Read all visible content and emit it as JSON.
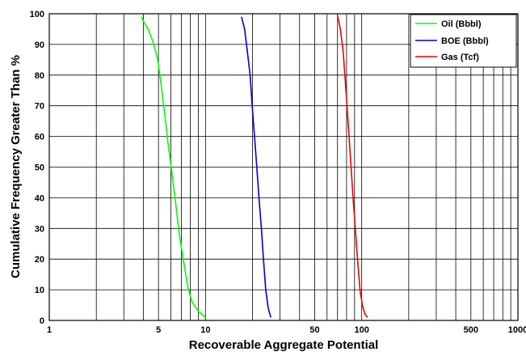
{
  "chart_data": {
    "type": "line",
    "xlabel": "Recoverable Aggregate Potential",
    "ylabel": "Cumulative Frequency Greater Than %",
    "xscale": "log",
    "xlim": [
      1,
      1000
    ],
    "ylim": [
      0,
      100
    ],
    "grid": true,
    "legend_position": "top-right",
    "x_ticks": [
      {
        "value": 1,
        "label": "1"
      },
      {
        "value": 5,
        "label": "5"
      },
      {
        "value": 10,
        "label": "10"
      },
      {
        "value": 50,
        "label": "50"
      },
      {
        "value": 100,
        "label": "100"
      },
      {
        "value": 500,
        "label": "500"
      },
      {
        "value": 1000,
        "label": "1000"
      }
    ],
    "y_ticks": [
      0,
      10,
      20,
      30,
      40,
      50,
      60,
      70,
      80,
      90,
      100
    ],
    "series": [
      {
        "name": "Oil (Bbbl)",
        "color": "#00ff00",
        "points": [
          [
            3.9,
            99
          ],
          [
            4.0,
            97.5
          ],
          [
            4.3,
            95
          ],
          [
            4.6,
            91
          ],
          [
            4.9,
            86
          ],
          [
            5.1,
            80
          ],
          [
            5.4,
            70
          ],
          [
            5.75,
            58
          ],
          [
            6.1,
            48
          ],
          [
            6.45,
            38
          ],
          [
            6.8,
            28
          ],
          [
            7.2,
            20
          ],
          [
            7.7,
            11
          ],
          [
            8.2,
            6
          ],
          [
            9.0,
            3
          ],
          [
            10.0,
            1
          ]
        ]
      },
      {
        "name": "BOE (Bbbl)",
        "color": "#0000cc",
        "points": [
          [
            17.0,
            99
          ],
          [
            17.8,
            95
          ],
          [
            18.5,
            88
          ],
          [
            19.3,
            80
          ],
          [
            19.9,
            70
          ],
          [
            20.6,
            60
          ],
          [
            21.3,
            50
          ],
          [
            22.0,
            40
          ],
          [
            22.8,
            30
          ],
          [
            23.5,
            20
          ],
          [
            24.3,
            10
          ],
          [
            25.2,
            4
          ],
          [
            26.2,
            1
          ]
        ]
      },
      {
        "name": "Gas (Tcf)",
        "color": "#ee0000",
        "points": [
          [
            70,
            99.5
          ],
          [
            73,
            95
          ],
          [
            76,
            88
          ],
          [
            78,
            80
          ],
          [
            80.5,
            70
          ],
          [
            83,
            60
          ],
          [
            85.5,
            50
          ],
          [
            88,
            40
          ],
          [
            91,
            30
          ],
          [
            94,
            20
          ],
          [
            97.5,
            10
          ],
          [
            101,
            5
          ],
          [
            105,
            2
          ],
          [
            109,
            1
          ]
        ]
      }
    ]
  }
}
